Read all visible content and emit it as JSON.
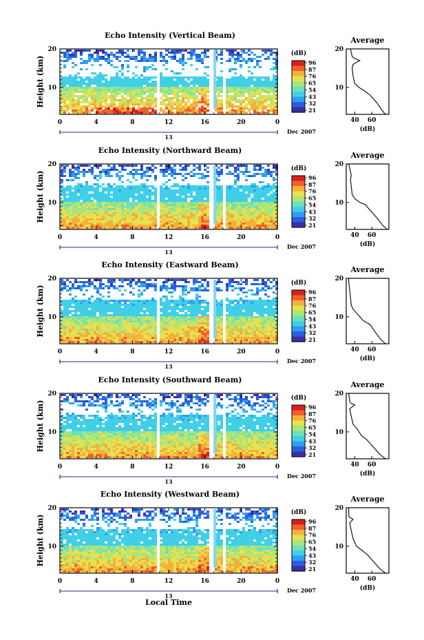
{
  "chart_data": {
    "type": "heatmap",
    "xlabel": "Local Time",
    "date_label": "Dec 2007",
    "day_label": "13",
    "ylabel": "Height (km)",
    "xlim": [
      0,
      24
    ],
    "ylim": [
      3,
      20
    ],
    "x_ticks": [
      "0",
      "4",
      "8",
      "12",
      "16",
      "20",
      "0"
    ],
    "x_tick_values": [
      0,
      4,
      8,
      12,
      16,
      20,
      24
    ],
    "y_ticks": [
      "20",
      "10"
    ],
    "y_tick_values": [
      20,
      10
    ],
    "colorbar": {
      "unit": "(dB)",
      "tick_labels": [
        "96",
        "87",
        "76",
        "65",
        "54",
        "43",
        "32",
        "21"
      ]
    },
    "colorscale": [
      "#3b2fa8",
      "#2a5fe0",
      "#2f9ef0",
      "#41cfe8",
      "#6fe0b8",
      "#a8e67a",
      "#e8e050",
      "#f5b03a",
      "#f0602a",
      "#d8201c"
    ],
    "average_profile": {
      "title": "Average",
      "xlabel": "(dB)",
      "x_ticks": [
        "40",
        "60"
      ],
      "x_tick_values": [
        40,
        60
      ],
      "xlim": [
        30,
        80
      ]
    },
    "data_gaps_hours": [
      [
        10.6,
        11.0
      ],
      [
        16.2,
        17.0
      ],
      [
        17.8,
        18.1
      ]
    ],
    "panels": [
      {
        "title": "Echo Intensity (Vertical Beam)",
        "cbar_labels": [
          "96",
          "87",
          "76",
          "65",
          "54",
          "43",
          "32",
          "21"
        ],
        "profile": [
          [
            76,
            3
          ],
          [
            72,
            4
          ],
          [
            66,
            6
          ],
          [
            58,
            8
          ],
          [
            52,
            9
          ],
          [
            45,
            10
          ],
          [
            40,
            11
          ],
          [
            38,
            13
          ],
          [
            37,
            15
          ],
          [
            38,
            16
          ],
          [
            46,
            17
          ],
          [
            40,
            17.5
          ],
          [
            37,
            18
          ],
          [
            36,
            19
          ],
          [
            35,
            20
          ]
        ]
      },
      {
        "title": "Echo Intensity (Northward Beam)",
        "cbar_labels": [
          "96",
          "87",
          "76",
          "65",
          "54",
          "43",
          "32",
          "21"
        ],
        "profile": [
          [
            78,
            3
          ],
          [
            73,
            4
          ],
          [
            66,
            6
          ],
          [
            58,
            8
          ],
          [
            52,
            9.5
          ],
          [
            46,
            10
          ],
          [
            40,
            11
          ],
          [
            37,
            12
          ],
          [
            36,
            14
          ],
          [
            35,
            16
          ],
          [
            36,
            17
          ],
          [
            35,
            18
          ],
          [
            34,
            19
          ],
          [
            33,
            20
          ]
        ]
      },
      {
        "title": "Echo Intensity (Eastward Beam)",
        "cbar_labels": [
          "96",
          "87",
          "76",
          "65",
          "54",
          "43",
          "32",
          "21"
        ],
        "profile": [
          [
            76,
            3
          ],
          [
            71,
            4
          ],
          [
            64,
            6
          ],
          [
            58,
            8
          ],
          [
            50,
            9
          ],
          [
            46,
            10
          ],
          [
            42,
            11
          ],
          [
            38,
            12
          ],
          [
            36,
            13
          ],
          [
            35,
            15
          ],
          [
            34,
            17
          ],
          [
            33,
            19
          ],
          [
            33,
            20
          ]
        ]
      },
      {
        "title": "Echo Intensity (Southward Beam)",
        "cbar_labels": [
          "96",
          "87",
          "76",
          "65",
          "54",
          "43",
          "32",
          "21"
        ],
        "profile": [
          [
            76,
            3
          ],
          [
            70,
            4
          ],
          [
            62,
            6
          ],
          [
            54,
            8
          ],
          [
            48,
            9
          ],
          [
            42,
            11
          ],
          [
            38,
            12
          ],
          [
            36,
            14
          ],
          [
            35,
            15
          ],
          [
            34,
            16
          ],
          [
            40,
            17
          ],
          [
            35,
            17.5
          ],
          [
            34,
            18
          ],
          [
            33,
            20
          ]
        ]
      },
      {
        "title": "Echo Intensity (Westward Beam)",
        "cbar_labels": [
          "96",
          "87",
          "76",
          "65",
          "54",
          "43",
          "32",
          "21"
        ],
        "profile": [
          [
            76,
            3
          ],
          [
            70,
            4
          ],
          [
            62,
            6
          ],
          [
            54,
            8
          ],
          [
            48,
            9
          ],
          [
            42,
            10
          ],
          [
            38,
            12
          ],
          [
            36,
            14
          ],
          [
            35,
            15
          ],
          [
            34,
            16
          ],
          [
            38,
            17
          ],
          [
            34,
            17.5
          ],
          [
            33,
            18
          ],
          [
            33,
            20
          ]
        ]
      }
    ]
  }
}
